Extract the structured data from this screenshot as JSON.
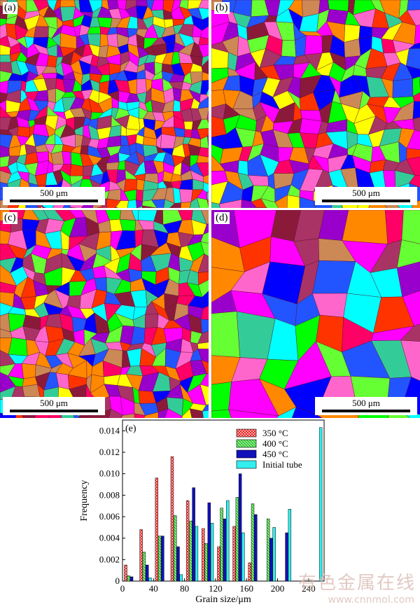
{
  "panels": [
    {
      "label": "(a)",
      "scale": "500 μm",
      "grain": 13,
      "seed": 11
    },
    {
      "label": "(b)",
      "scale": "500 μm",
      "grain": 19,
      "seed": 23
    },
    {
      "label": "(c)",
      "scale": "500 μm",
      "grain": 17,
      "seed": 37
    },
    {
      "label": "(d)",
      "scale": "500 μm",
      "grain": 40,
      "seed": 51
    }
  ],
  "grain_palette": [
    "#ff00ff",
    "#ff0066",
    "#00ff00",
    "#ffff00",
    "#00ffff",
    "#0000ff",
    "#ff8800",
    "#9900cc",
    "#8b1a3a",
    "#cc8855",
    "#33cc99",
    "#ff66cc",
    "#2255ff",
    "#aa3366",
    "#66ff33",
    "#ff3300"
  ],
  "chart_data": {
    "type": "bar",
    "label": "(e)",
    "xlabel": "Grain size/μm",
    "ylabel": "Frequency",
    "xlim": [
      0,
      260
    ],
    "ylim": [
      0,
      0.015
    ],
    "xticks": [
      0,
      40,
      80,
      120,
      160,
      200,
      240
    ],
    "yticks": [
      0,
      0.002,
      0.004,
      0.006,
      0.008,
      0.01,
      0.012,
      0.014
    ],
    "ytick_labels": [
      "0",
      "0.002",
      "0.004",
      "0.006",
      "0.008",
      "0.010",
      "0.012",
      "0.014"
    ],
    "legend_position": "top-right",
    "categories": [
      10,
      30,
      50,
      70,
      90,
      110,
      130,
      150,
      170,
      190,
      210,
      230,
      250
    ],
    "series": [
      {
        "name": "350 °C",
        "color": "#ee1111",
        "pattern": "cross",
        "values": [
          0.0015,
          0.0048,
          0.0096,
          0.0116,
          0.0075,
          0.0049,
          0.0032,
          0.0051,
          0.0017,
          0,
          0,
          0,
          0
        ]
      },
      {
        "name": "400 °C",
        "color": "#33cc33",
        "pattern": "diag",
        "values": [
          0.0005,
          0.0027,
          0.0042,
          0.0061,
          0.0056,
          0.0035,
          0.0068,
          0.0078,
          0.0072,
          0.0058,
          0,
          0,
          0
        ]
      },
      {
        "name": "450 °C",
        "color": "#1111bb",
        "pattern": "solid",
        "values": [
          0.0004,
          0.0015,
          0.0042,
          0.0032,
          0.0087,
          0.0073,
          0.0058,
          0.01,
          0.0062,
          0.004,
          0.0045,
          0,
          0
        ]
      },
      {
        "name": "Initial tube",
        "color": "#33eeee",
        "pattern": "solid",
        "values": [
          0,
          0.0003,
          0,
          0.0006,
          0.0051,
          0.0054,
          0.0075,
          0.0045,
          0,
          0.005,
          0.0067,
          0,
          0.0143
        ]
      }
    ]
  },
  "watermark": {
    "text": "有色金属在线",
    "url": "www.cnnmol.com"
  }
}
